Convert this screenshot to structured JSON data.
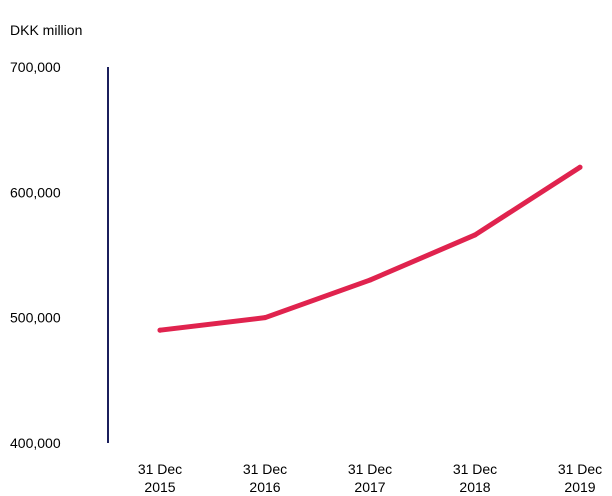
{
  "chart_data": {
    "type": "line",
    "unit_label": "DKK million",
    "categories": [
      [
        "31 Dec",
        "2015"
      ],
      [
        "31 Dec",
        "2016"
      ],
      [
        "31 Dec",
        "2017"
      ],
      [
        "31 Dec",
        "2018"
      ],
      [
        "31 Dec",
        "2019"
      ]
    ],
    "series": [
      {
        "values": [
          490000,
          500000,
          530000,
          566000,
          620000
        ]
      }
    ],
    "ylim": [
      400000,
      700000
    ],
    "yticks": [
      400000,
      500000,
      600000,
      700000
    ],
    "ytick_labels": [
      "400,000",
      "500,000",
      "600,000",
      "700,000"
    ],
    "grid": false,
    "colors": {
      "line": "#E0234E",
      "axis": "#1B1F5C"
    }
  }
}
